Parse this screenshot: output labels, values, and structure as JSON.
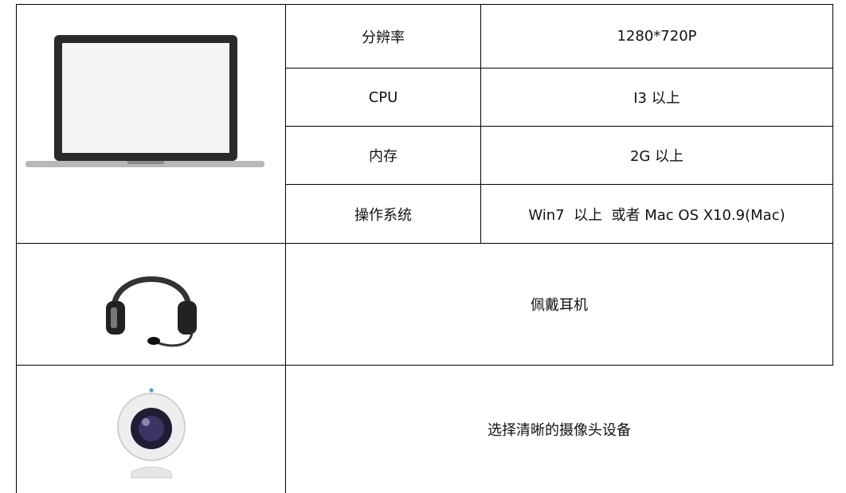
{
  "table": {
    "specs": [
      {
        "label": "分辨率",
        "value": "1280*720P"
      },
      {
        "label": "CPU",
        "value": "I3 以上"
      },
      {
        "label": "内存",
        "value": "2G 以上"
      },
      {
        "label": "操作系统",
        "value": "Win7  以上  或者 Mac OS X10.9(Mac)"
      }
    ],
    "headset": "佩戴耳机",
    "camera": "选择清晰的摄像头设备"
  }
}
